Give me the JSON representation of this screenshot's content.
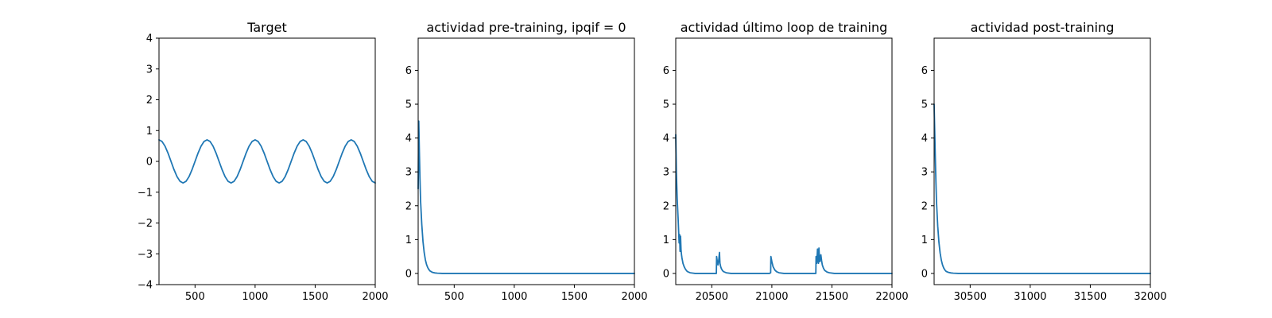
{
  "figure": {
    "background": "#ffffff",
    "line_color": "#1f77b4"
  },
  "chart_data": [
    {
      "type": "line",
      "title": "Target",
      "xlabel": "",
      "ylabel": "",
      "xlim": [
        200,
        2000
      ],
      "ylim": [
        -4,
        4
      ],
      "xticks": [
        500,
        1000,
        1500,
        2000
      ],
      "yticks": [
        -4,
        -3,
        -2,
        -1,
        0,
        1,
        2,
        3,
        4
      ],
      "grid": false,
      "series": [
        {
          "x": [
            200,
            225,
            250,
            275,
            300,
            325,
            350,
            375,
            400,
            425,
            450,
            475,
            500,
            525,
            550,
            575,
            600,
            625,
            650,
            675,
            700,
            725,
            750,
            775,
            800,
            825,
            850,
            875,
            900,
            925,
            950,
            975,
            1000,
            1025,
            1050,
            1075,
            1100,
            1125,
            1150,
            1175,
            1200,
            1225,
            1250,
            1275,
            1300,
            1325,
            1350,
            1375,
            1400,
            1425,
            1450,
            1475,
            1500,
            1525,
            1550,
            1575,
            1600,
            1625,
            1650,
            1675,
            1700,
            1725,
            1750,
            1775,
            1800,
            1825,
            1850,
            1875,
            1900,
            1925,
            1950,
            1975,
            2000
          ],
          "y": [
            0.7,
            0.647,
            0.495,
            0.268,
            0.0,
            -0.268,
            -0.495,
            -0.647,
            -0.7,
            -0.647,
            -0.495,
            -0.268,
            0.0,
            0.268,
            0.495,
            0.647,
            0.7,
            0.647,
            0.495,
            0.268,
            0.0,
            -0.268,
            -0.495,
            -0.647,
            -0.7,
            -0.647,
            -0.495,
            -0.268,
            0.0,
            0.268,
            0.495,
            0.647,
            0.7,
            0.647,
            0.495,
            0.268,
            0.0,
            -0.268,
            -0.495,
            -0.647,
            -0.7,
            -0.647,
            -0.495,
            -0.268,
            0.0,
            0.268,
            0.495,
            0.647,
            0.7,
            0.647,
            0.495,
            0.268,
            0.0,
            -0.268,
            -0.495,
            -0.647,
            -0.7,
            -0.647,
            -0.495,
            -0.268,
            0.0,
            0.268,
            0.495,
            0.647,
            0.7,
            0.647,
            0.495,
            0.268,
            0.0,
            -0.268,
            -0.495,
            -0.647,
            -0.7
          ]
        }
      ]
    },
    {
      "type": "line",
      "title": "actividad pre-training, ipqif = 0",
      "xlabel": "",
      "ylabel": "",
      "xlim": [
        200,
        2000
      ],
      "ylim": [
        -0.33,
        6.95
      ],
      "xticks": [
        500,
        1000,
        1500,
        2000
      ],
      "yticks": [
        0,
        1,
        2,
        3,
        4,
        5,
        6
      ],
      "grid": false,
      "series": [
        {
          "x": [
            200,
            205,
            210,
            215,
            220,
            230,
            240,
            250,
            260,
            270,
            280,
            290,
            300,
            320,
            340,
            360,
            400,
            500,
            800,
            1200,
            1600,
            2000
          ],
          "y": [
            2.5,
            4.5,
            3.6,
            2.8,
            2.15,
            1.45,
            0.95,
            0.62,
            0.4,
            0.26,
            0.17,
            0.11,
            0.07,
            0.03,
            0.015,
            0.008,
            0.0,
            0.0,
            0.0,
            0.0,
            0.0,
            0.0
          ]
        }
      ]
    },
    {
      "type": "line",
      "title": "actividad último loop de training",
      "xlabel": "",
      "ylabel": "",
      "xlim": [
        20200,
        22000
      ],
      "ylim": [
        -0.33,
        6.95
      ],
      "xticks": [
        20500,
        21000,
        21500,
        22000
      ],
      "yticks": [
        0,
        1,
        2,
        3,
        4,
        5,
        6
      ],
      "grid": false,
      "series": [
        {
          "x": [
            20200,
            20205,
            20212,
            20220,
            20228,
            20232,
            20236,
            20240,
            20244,
            20248,
            20252,
            20256,
            20260,
            20270,
            20280,
            20290,
            20300,
            20320,
            20340,
            20360,
            20400,
            20450,
            20500,
            20538,
            20540,
            20546,
            20552,
            20558,
            20562,
            20564,
            20566,
            20568,
            20574,
            20580,
            20590,
            20600,
            20620,
            20660,
            20700,
            20800,
            20900,
            20980,
            20990,
            20992,
            21000,
            21010,
            21025,
            21040,
            21060,
            21100,
            21200,
            21300,
            21366,
            21368,
            21374,
            21380,
            21384,
            21388,
            21392,
            21396,
            21400,
            21404,
            21408,
            21414,
            21420,
            21430,
            21440,
            21460,
            21480,
            21520,
            21600,
            21800,
            22000
          ],
          "y": [
            4.1,
            3.0,
            2.2,
            1.6,
            0.9,
            1.15,
            0.65,
            1.1,
            0.7,
            0.55,
            0.45,
            0.38,
            0.3,
            0.2,
            0.13,
            0.08,
            0.05,
            0.02,
            0.01,
            0.0,
            0.0,
            0.0,
            0.0,
            0.0,
            0.5,
            0.35,
            0.25,
            0.4,
            0.55,
            0.62,
            0.45,
            0.3,
            0.2,
            0.14,
            0.08,
            0.05,
            0.02,
            0.0,
            0.0,
            0.0,
            0.0,
            0.0,
            0.02,
            0.5,
            0.35,
            0.2,
            0.1,
            0.05,
            0.02,
            0.0,
            0.0,
            0.0,
            0.0,
            0.5,
            0.3,
            0.72,
            0.4,
            0.3,
            0.75,
            0.45,
            0.35,
            0.48,
            0.55,
            0.38,
            0.25,
            0.15,
            0.09,
            0.04,
            0.02,
            0.0,
            0.0,
            0.0,
            0.0
          ]
        }
      ]
    },
    {
      "type": "line",
      "title": "actividad post-training",
      "xlabel": "",
      "ylabel": "",
      "xlim": [
        30200,
        32000
      ],
      "ylim": [
        -0.33,
        6.95
      ],
      "xticks": [
        30500,
        31000,
        31500,
        32000
      ],
      "yticks": [
        0,
        1,
        2,
        3,
        4,
        5,
        6
      ],
      "grid": false,
      "series": [
        {
          "x": [
            30200,
            30205,
            30210,
            30215,
            30220,
            30230,
            30240,
            30250,
            30260,
            30270,
            30280,
            30290,
            30300,
            30320,
            30340,
            30360,
            30400,
            30500,
            30800,
            31200,
            31600,
            32000
          ],
          "y": [
            5.0,
            4.2,
            3.4,
            2.7,
            2.1,
            1.4,
            0.92,
            0.6,
            0.39,
            0.25,
            0.16,
            0.1,
            0.06,
            0.03,
            0.015,
            0.008,
            0.0,
            0.0,
            0.0,
            0.0,
            0.0,
            0.0
          ]
        }
      ]
    }
  ]
}
